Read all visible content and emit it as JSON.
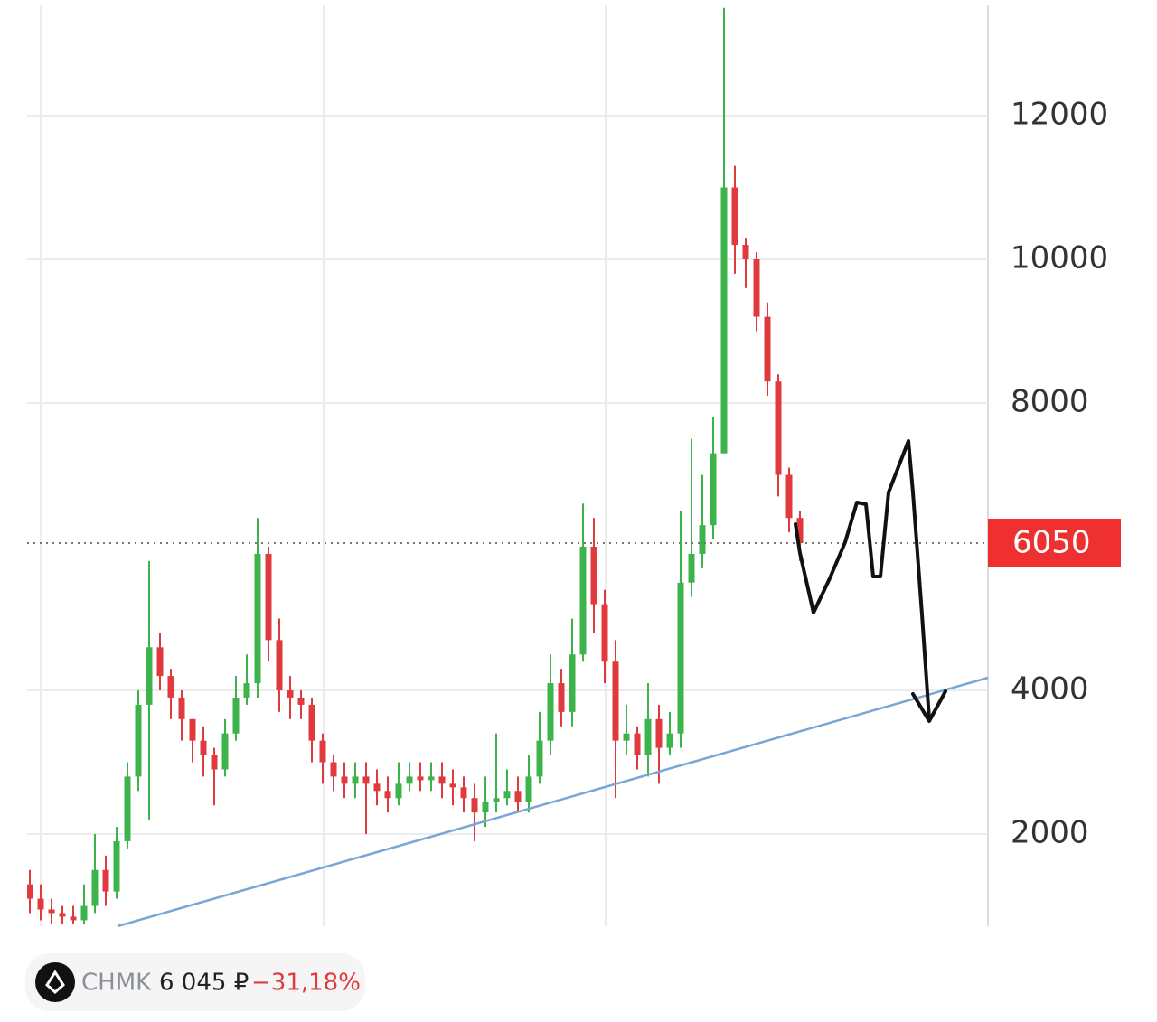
{
  "chart_data": {
    "type": "candlestick",
    "open": [
      1300,
      1100,
      950,
      900,
      850,
      800,
      1000,
      1500,
      1200,
      1900,
      2800,
      3800,
      4600,
      4200,
      3900,
      3600,
      3300,
      3100,
      2900,
      3400,
      3900,
      4100,
      5900,
      4700,
      4000,
      3900,
      3800,
      3300,
      3000,
      2800,
      2700,
      2800,
      2700,
      2600,
      2500,
      2700,
      2800,
      2750,
      2800,
      2700,
      2650,
      2500,
      2300,
      2450,
      2500,
      2600,
      2450,
      2800,
      3300,
      4100,
      3700,
      4500,
      6000,
      5200,
      4400,
      3300,
      3400,
      3100,
      3600,
      3200,
      3400,
      5500,
      5900,
      6300,
      7300,
      11000,
      10200,
      10000,
      9200,
      8300,
      7000,
      6400
    ],
    "high": [
      1500,
      1300,
      1100,
      1000,
      1000,
      1300,
      2000,
      1700,
      2100,
      3000,
      4000,
      5800,
      4800,
      4300,
      4000,
      3600,
      3500,
      3200,
      3600,
      4200,
      4500,
      6400,
      6000,
      5000,
      4200,
      4000,
      3900,
      3400,
      3100,
      3000,
      3000,
      3000,
      2900,
      2800,
      3000,
      3000,
      3000,
      3000,
      3000,
      2900,
      2800,
      2700,
      2800,
      3400,
      2900,
      2800,
      3100,
      3700,
      4500,
      4300,
      5000,
      6600,
      6400,
      5400,
      4700,
      3800,
      3500,
      4100,
      3800,
      3700,
      6500,
      7500,
      7000,
      7800,
      13500,
      11300,
      10300,
      10100,
      9400,
      8400,
      7100,
      6500
    ],
    "low": [
      900,
      800,
      750,
      750,
      750,
      750,
      900,
      1000,
      1100,
      1800,
      2600,
      2200,
      4000,
      3600,
      3300,
      3000,
      2800,
      2400,
      2800,
      3300,
      3800,
      3900,
      4400,
      3700,
      3600,
      3600,
      3000,
      2700,
      2600,
      2500,
      2500,
      2000,
      2400,
      2300,
      2400,
      2600,
      2600,
      2600,
      2500,
      2400,
      2300,
      1900,
      2100,
      2300,
      2400,
      2300,
      2300,
      2700,
      3100,
      3500,
      3500,
      4400,
      4800,
      4100,
      2500,
      3100,
      2900,
      2800,
      2700,
      3100,
      3200,
      5300,
      5700,
      6100,
      7300,
      9800,
      9600,
      9000,
      8100,
      6700,
      6200,
      5800
    ],
    "close": [
      1100,
      950,
      900,
      850,
      800,
      1000,
      1500,
      1200,
      1900,
      2800,
      3800,
      4600,
      4200,
      3900,
      3600,
      3300,
      3100,
      2900,
      3400,
      3900,
      4100,
      5900,
      4700,
      4000,
      3900,
      3800,
      3300,
      3000,
      2800,
      2700,
      2800,
      2700,
      2600,
      2500,
      2700,
      2800,
      2750,
      2800,
      2700,
      2650,
      2500,
      2300,
      2450,
      2500,
      2600,
      2450,
      2800,
      3300,
      4100,
      3700,
      4500,
      6000,
      5200,
      4400,
      3300,
      3400,
      3100,
      3600,
      3200,
      3400,
      5500,
      5900,
      6300,
      7300,
      11000,
      10200,
      10000,
      9200,
      8300,
      7000,
      6400,
      6050
    ],
    "up_color": "#3cb44b",
    "down_color": "#e0393e",
    "ylim": [
      717,
      13547
    ],
    "yticks": [
      2000,
      4000,
      8000,
      10000,
      12000
    ],
    "grid": true,
    "last_price": 6050,
    "last_price_color": "#ee3030"
  },
  "ticker": {
    "symbol": "CHMK",
    "price": "6 045 ₽",
    "change": "−31,18%"
  }
}
